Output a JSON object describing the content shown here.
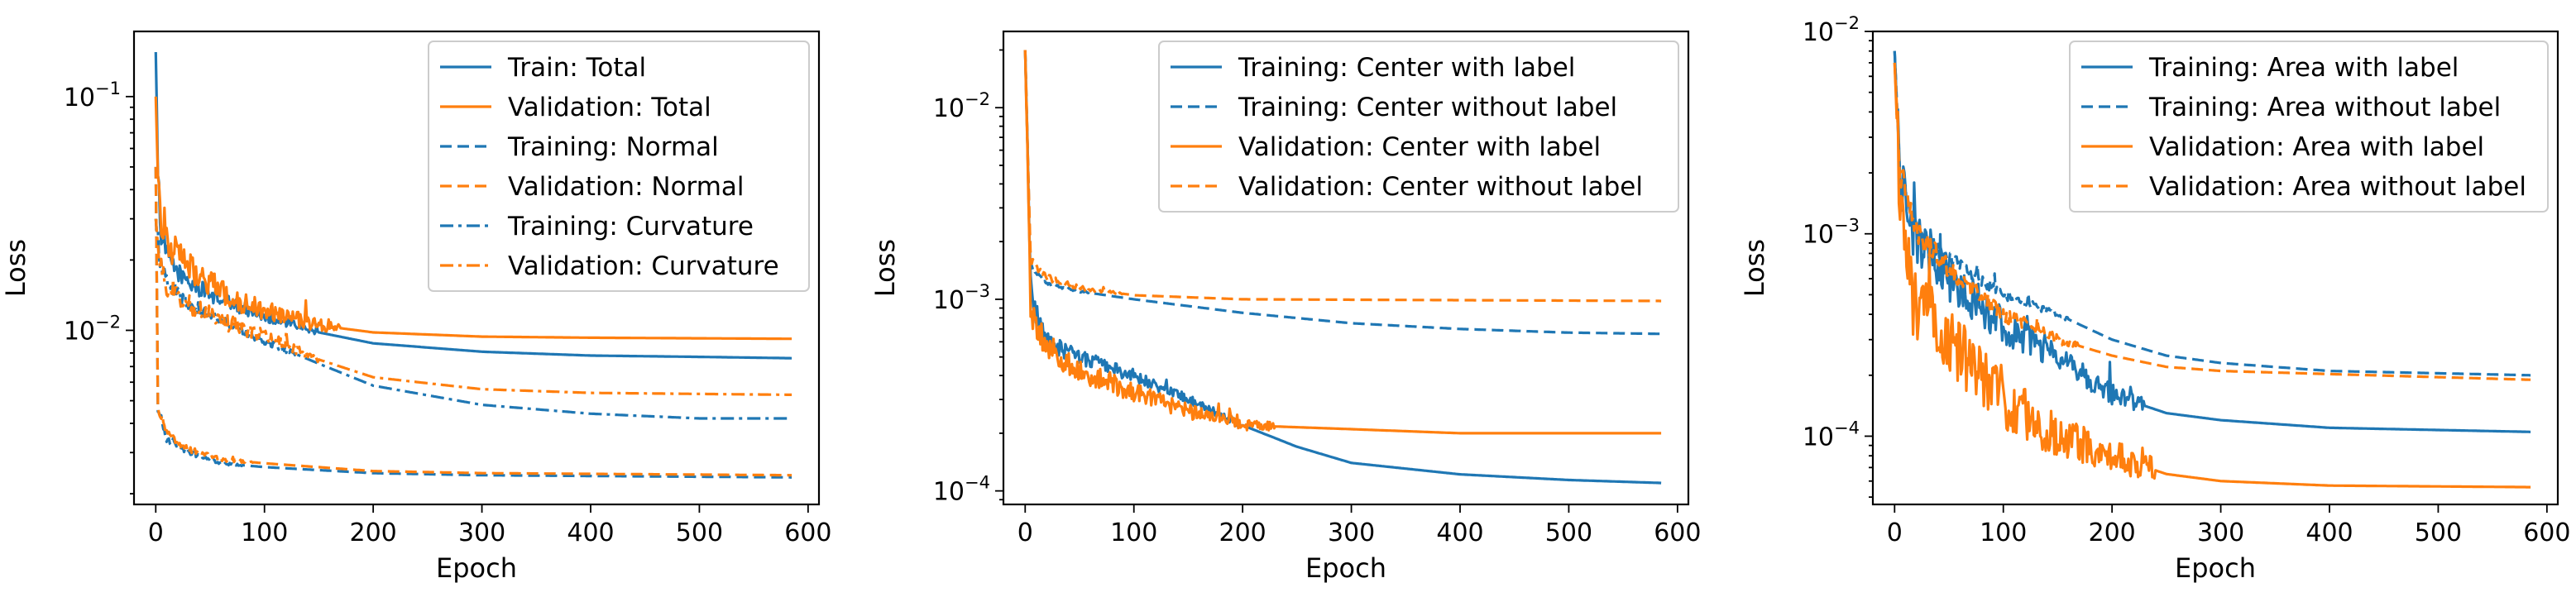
{
  "colors": {
    "blue": "#1f77b4",
    "orange": "#ff7f0e"
  },
  "chart_data": [
    {
      "type": "line",
      "yscale": "log",
      "xlabel": "Epoch",
      "ylabel": "Loss",
      "xlim": [
        -20,
        610
      ],
      "ylim": [
        0.0018,
        0.19
      ],
      "xticks": [
        0,
        100,
        200,
        300,
        400,
        500,
        600
      ],
      "yticks": [
        {
          "value": 0.1,
          "base": "10",
          "exp": "−1"
        },
        {
          "value": 0.01,
          "base": "10",
          "exp": "−2"
        }
      ],
      "legend": "top-right",
      "series": [
        {
          "name": "Train: Total",
          "color": "#1f77b4",
          "style": "solid",
          "keys": [
            [
              0,
              0.155
            ],
            [
              2,
              0.05
            ],
            [
              5,
              0.025
            ],
            [
              15,
              0.019
            ],
            [
              30,
              0.016
            ],
            [
              60,
              0.0135
            ],
            [
              100,
              0.0115
            ],
            [
              150,
              0.0098
            ],
            [
              200,
              0.0088
            ],
            [
              300,
              0.0081
            ],
            [
              400,
              0.0078
            ],
            [
              500,
              0.0077
            ],
            [
              585,
              0.0076
            ]
          ],
          "noise": 0.1,
          "noiseUntil": 150
        },
        {
          "name": "Validation: Total",
          "color": "#ff7f0e",
          "style": "solid",
          "keys": [
            [
              0,
              0.1
            ],
            [
              2,
              0.045
            ],
            [
              5,
              0.03
            ],
            [
              15,
              0.022
            ],
            [
              40,
              0.017
            ],
            [
              80,
              0.013
            ],
            [
              150,
              0.0105
            ],
            [
              200,
              0.0098
            ],
            [
              300,
              0.0094
            ],
            [
              400,
              0.0093
            ],
            [
              585,
              0.0092
            ]
          ],
          "noise": 0.16,
          "noiseUntil": 170
        },
        {
          "name": "Training: Normal",
          "color": "#1f77b4",
          "style": "dashed",
          "keys": [
            [
              0,
              0.05
            ],
            [
              2,
              0.0045
            ],
            [
              10,
              0.0034
            ],
            [
              30,
              0.003
            ],
            [
              60,
              0.0027
            ],
            [
              100,
              0.0026
            ],
            [
              200,
              0.00245
            ],
            [
              300,
              0.0024
            ],
            [
              585,
              0.00235
            ]
          ],
          "noise": 0.03,
          "noiseUntil": 80
        },
        {
          "name": "Validation: Normal",
          "color": "#ff7f0e",
          "style": "dashed",
          "keys": [
            [
              0,
              0.05
            ],
            [
              2,
              0.0047
            ],
            [
              10,
              0.0036
            ],
            [
              30,
              0.0031
            ],
            [
              60,
              0.0028
            ],
            [
              100,
              0.0027
            ],
            [
              200,
              0.0025
            ],
            [
              300,
              0.00245
            ],
            [
              585,
              0.0024
            ]
          ],
          "noise": 0.04,
          "noiseUntil": 90
        },
        {
          "name": "Training: Curvature",
          "color": "#1f77b4",
          "style": "dashdot",
          "keys": [
            [
              0,
              0.03
            ],
            [
              3,
              0.02
            ],
            [
              10,
              0.016
            ],
            [
              30,
              0.013
            ],
            [
              60,
              0.011
            ],
            [
              100,
              0.009
            ],
            [
              150,
              0.0072
            ],
            [
              200,
              0.0058
            ],
            [
              300,
              0.0048
            ],
            [
              400,
              0.0044
            ],
            [
              500,
              0.0042
            ],
            [
              585,
              0.0042
            ]
          ],
          "noise": 0.08,
          "noiseUntil": 130
        },
        {
          "name": "Validation: Curvature",
          "color": "#ff7f0e",
          "style": "dashdot",
          "keys": [
            [
              0,
              0.03
            ],
            [
              3,
              0.02
            ],
            [
              10,
              0.015
            ],
            [
              30,
              0.013
            ],
            [
              60,
              0.011
            ],
            [
              100,
              0.0095
            ],
            [
              150,
              0.0075
            ],
            [
              200,
              0.0063
            ],
            [
              300,
              0.0056
            ],
            [
              400,
              0.0054
            ],
            [
              585,
              0.0053
            ]
          ],
          "noise": 0.12,
          "noiseUntil": 150
        }
      ]
    },
    {
      "type": "line",
      "yscale": "log",
      "xlabel": "Epoch",
      "ylabel": "Loss",
      "xlim": [
        -20,
        610
      ],
      "ylim": [
        8.5e-05,
        0.025
      ],
      "xticks": [
        0,
        100,
        200,
        300,
        400,
        500,
        600
      ],
      "yticks": [
        {
          "value": 0.01,
          "base": "10",
          "exp": "−2"
        },
        {
          "value": 0.001,
          "base": "10",
          "exp": "−3"
        },
        {
          "value": 0.0001,
          "base": "10",
          "exp": "−4"
        }
      ],
      "legend": "top-right",
      "series": [
        {
          "name": "Training: Center with label",
          "color": "#1f77b4",
          "style": "solid",
          "keys": [
            [
              0,
              0.02
            ],
            [
              5,
              0.0012
            ],
            [
              10,
              0.0008
            ],
            [
              20,
              0.0006
            ],
            [
              50,
              0.0005
            ],
            [
              100,
              0.0004
            ],
            [
              150,
              0.0003
            ],
            [
              200,
              0.00022
            ],
            [
              250,
              0.00017
            ],
            [
              300,
              0.00014
            ],
            [
              400,
              0.000122
            ],
            [
              500,
              0.000114
            ],
            [
              585,
              0.00011
            ]
          ],
          "noise": 0.12,
          "noiseUntil": 200
        },
        {
          "name": "Training: Center without label",
          "color": "#1f77b4",
          "style": "dashed",
          "keys": [
            [
              0,
              0.02
            ],
            [
              5,
              0.0015
            ],
            [
              20,
              0.0012
            ],
            [
              50,
              0.0011
            ],
            [
              100,
              0.001
            ],
            [
              200,
              0.00085
            ],
            [
              300,
              0.00075
            ],
            [
              400,
              0.0007
            ],
            [
              500,
              0.00067
            ],
            [
              585,
              0.00066
            ]
          ],
          "noise": 0.03,
          "noiseUntil": 60
        },
        {
          "name": "Validation: Center with label",
          "color": "#ff7f0e",
          "style": "solid",
          "keys": [
            [
              0,
              0.02
            ],
            [
              5,
              0.0009
            ],
            [
              10,
              0.0007
            ],
            [
              30,
              0.0005
            ],
            [
              60,
              0.0004
            ],
            [
              100,
              0.00033
            ],
            [
              150,
              0.00026
            ],
            [
              200,
              0.00022
            ],
            [
              300,
              0.00021
            ],
            [
              400,
              0.0002
            ],
            [
              585,
              0.0002
            ]
          ],
          "noise": 0.17,
          "noiseUntil": 230
        },
        {
          "name": "Validation: Center without label",
          "color": "#ff7f0e",
          "style": "dashed",
          "keys": [
            [
              0,
              0.02
            ],
            [
              5,
              0.0016
            ],
            [
              20,
              0.0013
            ],
            [
              50,
              0.00115
            ],
            [
              100,
              0.00105
            ],
            [
              200,
              0.001
            ],
            [
              585,
              0.00098
            ]
          ],
          "noise": 0.05,
          "noiseUntil": 90
        }
      ]
    },
    {
      "type": "line",
      "yscale": "log",
      "xlabel": "Epoch",
      "ylabel": "Loss",
      "xlim": [
        -20,
        610
      ],
      "ylim": [
        4.6e-05,
        0.01
      ],
      "xticks": [
        0,
        100,
        200,
        300,
        400,
        500,
        600
      ],
      "yticks": [
        {
          "value": 0.01,
          "base": "10",
          "exp": "−2"
        },
        {
          "value": 0.001,
          "base": "10",
          "exp": "−3"
        },
        {
          "value": 0.0001,
          "base": "10",
          "exp": "−4"
        }
      ],
      "legend": "top-right",
      "series": [
        {
          "name": "Training: Area with label",
          "color": "#1f77b4",
          "style": "solid",
          "keys": [
            [
              0,
              0.008
            ],
            [
              5,
              0.002
            ],
            [
              15,
              0.001
            ],
            [
              50,
              0.0006
            ],
            [
              100,
              0.00035
            ],
            [
              150,
              0.00025
            ],
            [
              200,
              0.00016
            ],
            [
              250,
              0.00013
            ],
            [
              300,
              0.00012
            ],
            [
              400,
              0.00011
            ],
            [
              585,
              0.000105
            ]
          ],
          "noise": 0.3,
          "noiseUntil": 230
        },
        {
          "name": "Training: Area without label",
          "color": "#1f77b4",
          "style": "dashed",
          "keys": [
            [
              0,
              0.008
            ],
            [
              5,
              0.002
            ],
            [
              20,
              0.001
            ],
            [
              60,
              0.0007
            ],
            [
              100,
              0.0005
            ],
            [
              150,
              0.0004
            ],
            [
              200,
              0.0003
            ],
            [
              250,
              0.00025
            ],
            [
              300,
              0.00023
            ],
            [
              400,
              0.00021
            ],
            [
              585,
              0.0002
            ]
          ],
          "noise": 0.1,
          "noiseUntil": 160
        },
        {
          "name": "Validation: Area with label",
          "color": "#ff7f0e",
          "style": "solid",
          "keys": [
            [
              0,
              0.007
            ],
            [
              5,
              0.0015
            ],
            [
              15,
              0.0005
            ],
            [
              50,
              0.0003
            ],
            [
              100,
              0.00015
            ],
            [
              150,
              0.0001
            ],
            [
              200,
              8e-05
            ],
            [
              250,
              6.5e-05
            ],
            [
              300,
              6e-05
            ],
            [
              400,
              5.7e-05
            ],
            [
              585,
              5.6e-05
            ]
          ],
          "noise": 0.45,
          "noiseUntil": 240
        },
        {
          "name": "Validation: Area without label",
          "color": "#ff7f0e",
          "style": "dashed",
          "keys": [
            [
              0,
              0.007
            ],
            [
              5,
              0.002
            ],
            [
              20,
              0.001
            ],
            [
              60,
              0.0006
            ],
            [
              100,
              0.0004
            ],
            [
              150,
              0.0003
            ],
            [
              200,
              0.00025
            ],
            [
              250,
              0.00022
            ],
            [
              300,
              0.00021
            ],
            [
              585,
              0.00019
            ]
          ],
          "noise": 0.15,
          "noiseUntil": 170
        }
      ]
    }
  ]
}
